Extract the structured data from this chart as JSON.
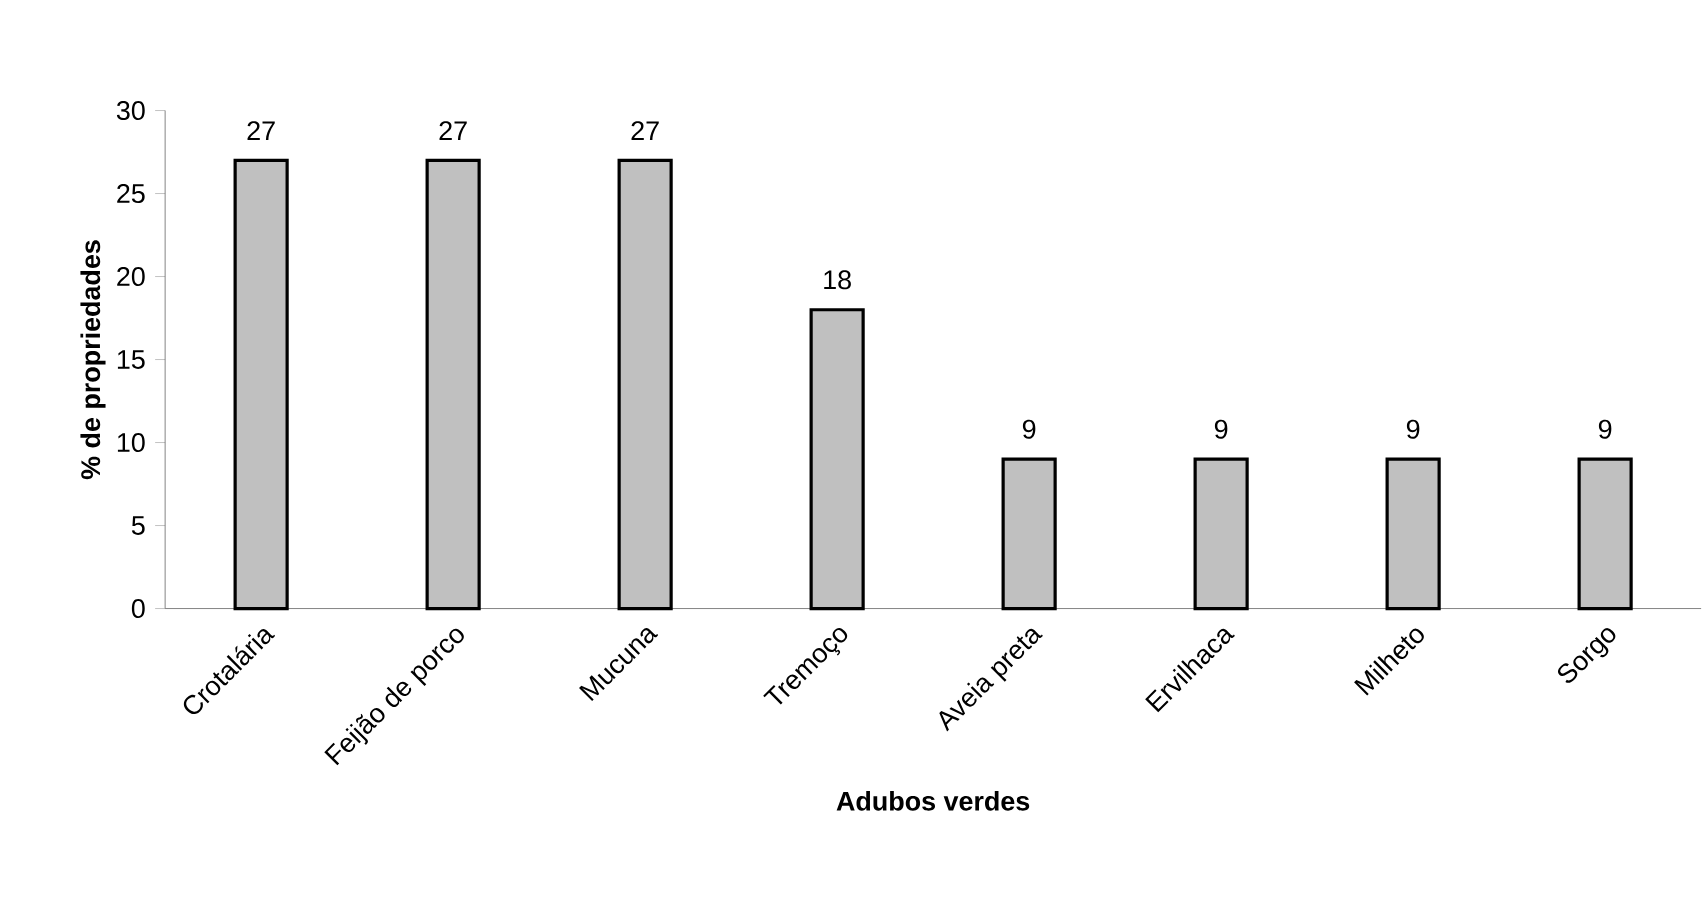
{
  "chart_data": {
    "type": "bar",
    "xlabel": "Adubos verdes",
    "ylabel": "% de propriedades",
    "categories": [
      "Crotalária",
      "Feijão de porco",
      "Mucuna",
      "Tremoço",
      "Aveia preta",
      "Ervilhaca",
      "Milheto",
      "Sorgo"
    ],
    "values": [
      27,
      27,
      27,
      18,
      9,
      9,
      9,
      9
    ],
    "color": "#c0c0c0",
    "data_labels": true,
    "ylim": [
      0,
      30
    ],
    "yticks": [
      0,
      5,
      10,
      15,
      20,
      25,
      30
    ]
  }
}
